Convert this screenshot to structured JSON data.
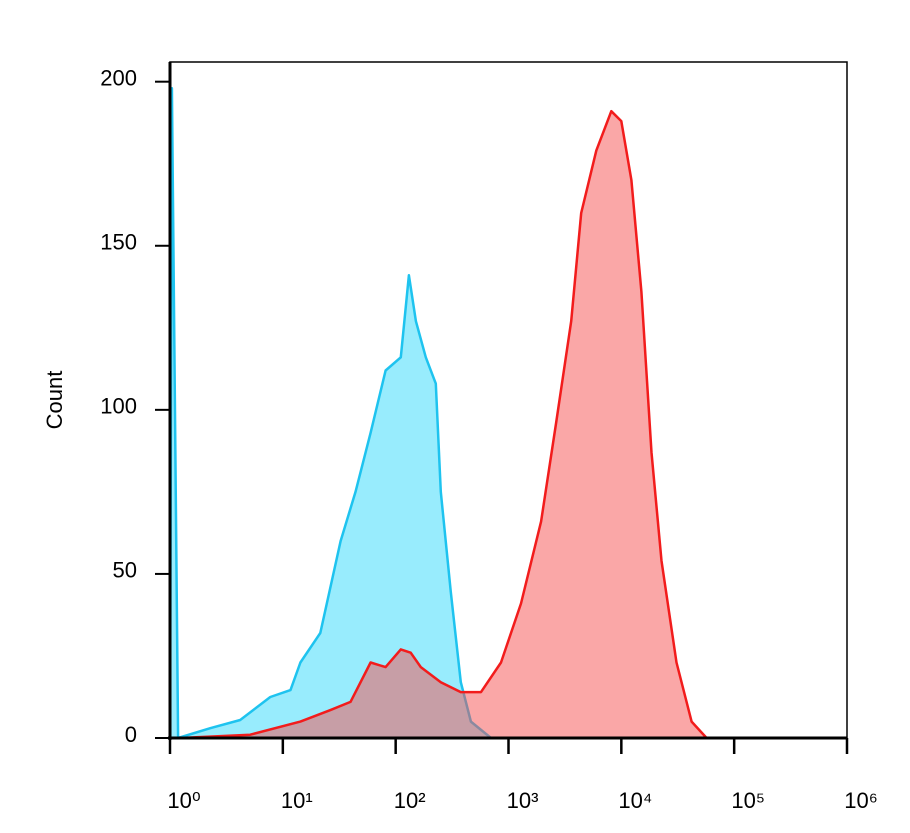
{
  "chart_data": {
    "type": "area",
    "ylabel": "Count",
    "xscale": "log",
    "xlim": [
      1,
      1000000
    ],
    "xticks": [
      {
        "value": 1,
        "label": "10⁰"
      },
      {
        "value": 10,
        "label": "10¹"
      },
      {
        "value": 100,
        "label": "10²"
      },
      {
        "value": 1000,
        "label": "10³"
      },
      {
        "value": 10000,
        "label": "10⁴"
      },
      {
        "value": 100000,
        "label": "10⁵"
      },
      {
        "value": 1000000,
        "label": "10⁶"
      }
    ],
    "ylim": [
      0,
      206
    ],
    "yticks": [
      0,
      50,
      100,
      150,
      200
    ],
    "series": [
      {
        "color": "#1ec3ef",
        "fill": "rgba(40,215,250,0.48)",
        "x": [
          1,
          1.04,
          1.18,
          2.27,
          4.19,
          7.74,
          11.7,
          14.3,
          21.5,
          32.5,
          44.1,
          60,
          81.5,
          111,
          131,
          151,
          185,
          227,
          251,
          308,
          378,
          464,
          699,
          1000000
        ],
        "values": [
          0,
          198,
          0,
          3,
          5.5,
          12.5,
          14.6,
          23,
          32,
          60,
          75,
          93,
          112,
          116,
          141,
          127,
          116,
          108,
          75,
          44.5,
          17,
          5,
          0,
          0
        ]
      },
      {
        "color": "#f21c1c",
        "fill": "rgba(246,80,80,0.5)",
        "x": [
          1.23,
          5.14,
          14.3,
          26.4,
          39.8,
          60,
          81.5,
          111,
          136,
          167,
          251,
          378,
          570,
          858,
          1291,
          1945,
          2644,
          3594,
          4408,
          5995,
          8150,
          10000,
          12270,
          15060,
          18490,
          22690,
          30830,
          41910,
          56990,
          1000000
        ],
        "values": [
          0,
          1,
          5,
          8.5,
          11,
          23,
          21.6,
          27,
          26,
          21.6,
          17,
          14,
          14,
          23,
          41,
          66,
          96,
          127,
          160,
          179,
          191,
          188,
          170,
          136,
          87,
          54,
          23,
          5,
          0,
          0
        ]
      }
    ]
  }
}
